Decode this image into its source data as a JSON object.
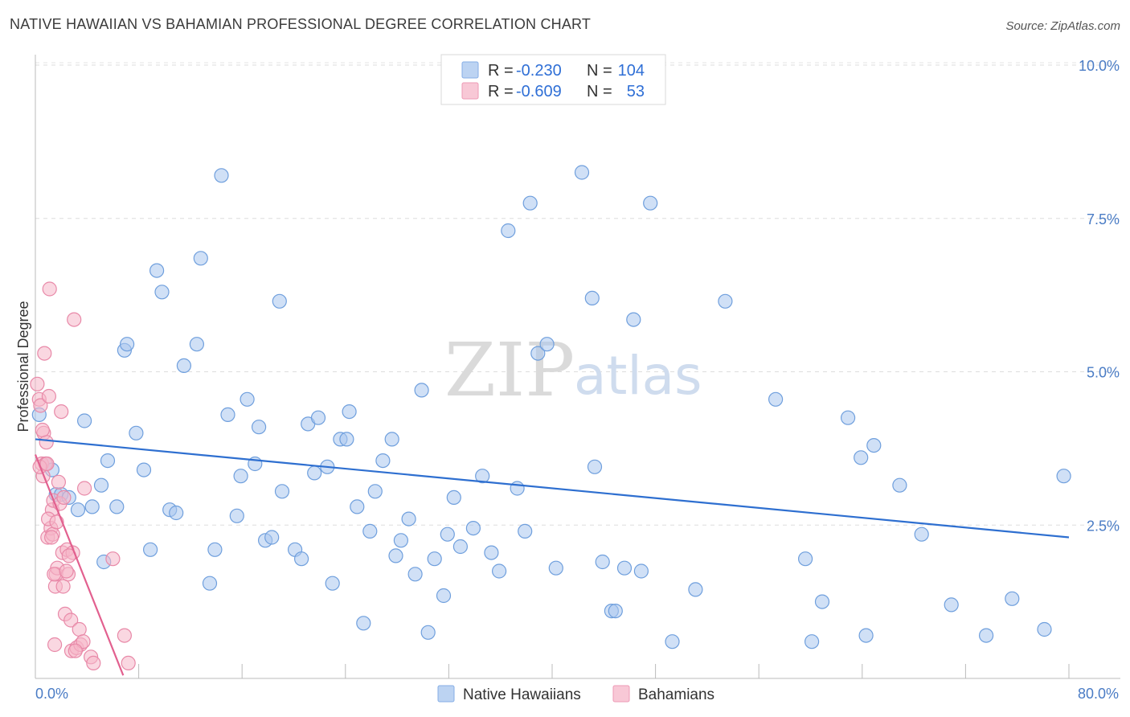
{
  "title": "NATIVE HAWAIIAN VS BAHAMIAN PROFESSIONAL DEGREE CORRELATION CHART",
  "source": "Source: ZipAtlas.com",
  "legend": {
    "rows": [
      {
        "r_label": "R =",
        "r_value": "-0.230",
        "n_label": "N =",
        "n_value": "104",
        "color": "#a9c6ee"
      },
      {
        "r_label": "R =",
        "r_value": "-0.609",
        "n_label": "N =",
        "n_value": "53",
        "color": "#f5b6c9"
      }
    ]
  },
  "bottom_legend": [
    "Native Hawaiians",
    "Bahamians"
  ],
  "watermark": {
    "part1": "ZIP",
    "part2": "atlas"
  },
  "chart_data": {
    "type": "scatter",
    "ylabel": "Professional Degree",
    "xlim": [
      0,
      80
    ],
    "ylim": [
      0,
      10.5
    ],
    "x_tick_labels": [
      "0.0%",
      "80.0%"
    ],
    "y_ticks": [
      {
        "value": 2.5,
        "label": "2.5%"
      },
      {
        "value": 5.0,
        "label": "5.0%"
      },
      {
        "value": 7.5,
        "label": "7.5%"
      },
      {
        "value": 10.0,
        "label": "10.0%"
      }
    ],
    "colors": {
      "blue_fill": "#a9c6ee",
      "blue_stroke": "#6f9fdd",
      "blue_line": "#2e6fd0",
      "pink_fill": "#f5b6c9",
      "pink_stroke": "#e889a8",
      "pink_line": "#e2608f"
    },
    "series": [
      {
        "name": "Native Hawaiians",
        "trend": {
          "x": [
            0,
            80
          ],
          "y": [
            3.9,
            2.3
          ]
        },
        "points": [
          [
            0.3,
            4.3
          ],
          [
            0.8,
            3.5
          ],
          [
            1.3,
            3.4
          ],
          [
            1.6,
            3.0
          ],
          [
            2.0,
            3.0
          ],
          [
            2.6,
            2.95
          ],
          [
            3.3,
            2.75
          ],
          [
            3.8,
            4.2
          ],
          [
            4.4,
            2.8
          ],
          [
            5.1,
            3.15
          ],
          [
            5.3,
            1.9
          ],
          [
            5.6,
            3.55
          ],
          [
            6.3,
            2.8
          ],
          [
            6.9,
            5.35
          ],
          [
            7.1,
            5.45
          ],
          [
            7.8,
            4.0
          ],
          [
            8.4,
            3.4
          ],
          [
            8.9,
            2.1
          ],
          [
            9.4,
            6.65
          ],
          [
            9.8,
            6.3
          ],
          [
            10.4,
            2.75
          ],
          [
            10.9,
            2.7
          ],
          [
            11.5,
            5.1
          ],
          [
            12.5,
            5.45
          ],
          [
            12.8,
            6.85
          ],
          [
            13.5,
            1.55
          ],
          [
            13.9,
            2.1
          ],
          [
            14.4,
            8.2
          ],
          [
            14.9,
            4.3
          ],
          [
            15.6,
            2.65
          ],
          [
            15.9,
            3.3
          ],
          [
            16.4,
            4.55
          ],
          [
            17.0,
            3.5
          ],
          [
            17.3,
            4.1
          ],
          [
            17.8,
            2.25
          ],
          [
            18.3,
            2.3
          ],
          [
            18.9,
            6.15
          ],
          [
            19.1,
            3.05
          ],
          [
            20.1,
            2.1
          ],
          [
            20.6,
            1.95
          ],
          [
            21.1,
            4.15
          ],
          [
            21.6,
            3.35
          ],
          [
            21.9,
            4.25
          ],
          [
            22.6,
            3.45
          ],
          [
            23.0,
            1.55
          ],
          [
            23.6,
            3.9
          ],
          [
            24.1,
            3.9
          ],
          [
            24.3,
            4.35
          ],
          [
            24.9,
            2.8
          ],
          [
            25.4,
            0.9
          ],
          [
            25.9,
            2.4
          ],
          [
            26.3,
            3.05
          ],
          [
            26.9,
            3.55
          ],
          [
            27.6,
            3.9
          ],
          [
            27.9,
            2.0
          ],
          [
            28.3,
            2.25
          ],
          [
            28.9,
            2.6
          ],
          [
            29.4,
            1.7
          ],
          [
            29.9,
            4.7
          ],
          [
            30.4,
            0.75
          ],
          [
            30.9,
            1.95
          ],
          [
            31.6,
            1.35
          ],
          [
            31.9,
            2.35
          ],
          [
            32.4,
            2.95
          ],
          [
            32.9,
            2.15
          ],
          [
            33.9,
            2.45
          ],
          [
            34.6,
            3.3
          ],
          [
            35.3,
            2.05
          ],
          [
            35.9,
            1.75
          ],
          [
            36.6,
            7.3
          ],
          [
            37.3,
            3.1
          ],
          [
            37.9,
            2.4
          ],
          [
            38.3,
            7.75
          ],
          [
            38.9,
            5.3
          ],
          [
            39.6,
            5.45
          ],
          [
            40.3,
            1.8
          ],
          [
            42.3,
            8.25
          ],
          [
            43.1,
            6.2
          ],
          [
            43.3,
            3.45
          ],
          [
            43.9,
            1.9
          ],
          [
            44.6,
            1.1
          ],
          [
            44.9,
            1.1
          ],
          [
            45.6,
            1.8
          ],
          [
            46.3,
            5.85
          ],
          [
            46.9,
            1.75
          ],
          [
            47.6,
            7.75
          ],
          [
            49.3,
            0.6
          ],
          [
            51.1,
            1.45
          ],
          [
            53.4,
            6.15
          ],
          [
            57.3,
            4.55
          ],
          [
            59.6,
            1.95
          ],
          [
            60.1,
            0.6
          ],
          [
            60.9,
            1.25
          ],
          [
            62.9,
            4.25
          ],
          [
            63.9,
            3.6
          ],
          [
            64.3,
            0.7
          ],
          [
            64.9,
            3.8
          ],
          [
            66.9,
            3.15
          ],
          [
            68.6,
            2.35
          ],
          [
            70.9,
            1.2
          ],
          [
            73.6,
            0.7
          ],
          [
            75.6,
            1.3
          ],
          [
            78.1,
            0.8
          ],
          [
            79.6,
            3.3
          ]
        ]
      },
      {
        "name": "Bahamians",
        "trend": {
          "x": [
            0,
            6.8
          ],
          "y": [
            3.65,
            0.05
          ]
        },
        "points": [
          [
            0.15,
            4.8
          ],
          [
            0.3,
            4.55
          ],
          [
            0.4,
            4.45
          ],
          [
            0.5,
            3.5
          ],
          [
            0.6,
            3.3
          ],
          [
            0.65,
            4.0
          ],
          [
            0.7,
            5.3
          ],
          [
            0.8,
            3.5
          ],
          [
            0.85,
            3.85
          ],
          [
            0.95,
            2.3
          ],
          [
            1.05,
            4.6
          ],
          [
            1.1,
            6.35
          ],
          [
            1.2,
            2.45
          ],
          [
            1.3,
            2.75
          ],
          [
            1.35,
            2.35
          ],
          [
            1.4,
            2.9
          ],
          [
            1.5,
            0.55
          ],
          [
            1.55,
            1.5
          ],
          [
            1.6,
            1.7
          ],
          [
            1.7,
            1.8
          ],
          [
            1.8,
            3.2
          ],
          [
            1.9,
            2.85
          ],
          [
            2.0,
            4.35
          ],
          [
            2.1,
            2.05
          ],
          [
            2.15,
            1.5
          ],
          [
            2.3,
            1.05
          ],
          [
            2.45,
            2.1
          ],
          [
            2.55,
            1.7
          ],
          [
            2.75,
            0.95
          ],
          [
            2.8,
            0.45
          ],
          [
            2.9,
            2.05
          ],
          [
            3.0,
            5.85
          ],
          [
            3.2,
            0.5
          ],
          [
            3.4,
            0.8
          ],
          [
            3.5,
            0.55
          ],
          [
            3.7,
            0.6
          ],
          [
            3.8,
            3.1
          ],
          [
            4.3,
            0.35
          ],
          [
            4.5,
            0.25
          ],
          [
            6.0,
            1.95
          ],
          [
            6.9,
            0.7
          ],
          [
            7.2,
            0.25
          ],
          [
            0.35,
            3.45
          ],
          [
            1.0,
            2.6
          ],
          [
            1.65,
            2.55
          ],
          [
            2.2,
            2.95
          ],
          [
            0.55,
            4.05
          ],
          [
            2.6,
            2.0
          ],
          [
            1.25,
            2.3
          ],
          [
            3.1,
            0.45
          ],
          [
            0.9,
            3.5
          ],
          [
            1.45,
            1.7
          ],
          [
            2.4,
            1.75
          ]
        ]
      }
    ]
  }
}
